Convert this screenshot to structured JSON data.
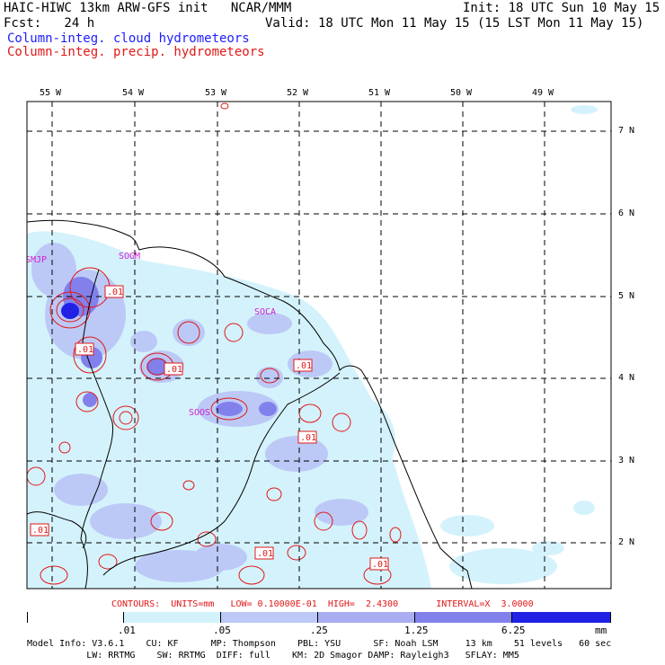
{
  "header": {
    "line1_left": "HAIC-HIWC 13km ARW-GFS init   NCAR/MMM",
    "line1_right": "Init: 18 UTC Sun 10 May 15",
    "line2_left": "Fcst:   24 h",
    "line2_right": "Valid: 18 UTC Mon 11 May 15 (15 LST Mon 11 May 15)",
    "field1": "Column-integ. cloud hydrometeors",
    "field2": "Column-integ. precip. hydrometeors",
    "field1_color": "#1c1cff",
    "field2_color": "#e01818"
  },
  "map": {
    "lon_labels": [
      "55 W",
      "54 W",
      "53 W",
      "52 W",
      "51 W",
      "50 W",
      "49 W"
    ],
    "lat_labels": [
      "7 N",
      "6 N",
      "5 N",
      "4 N",
      "3 N",
      "2 N"
    ],
    "stations": [
      "SMJP",
      "SOGM",
      "SOCA",
      "SOOS"
    ],
    "contour_labels": [
      ".01",
      ".01",
      ".01",
      ".01",
      ".01",
      ".01",
      ".01",
      ".01"
    ],
    "shade_colors": [
      "#ffffff",
      "#d4f2fb",
      "#bcc9f6",
      "#a9aef2",
      "#8281ec",
      "#5b57ea",
      "#2121e6"
    ],
    "contour_color": "#e01818",
    "station_color": "#d020d0"
  },
  "contour_info": {
    "line": "CONTOURS:  UNITS=mm   LOW= 0.10000E-01  HIGH=  2.4300       INTERVAL=X  3.0000"
  },
  "colorbar": {
    "ticks": [
      ".01",
      ".05",
      ".25",
      "1.25",
      "6.25"
    ],
    "units": "mm"
  },
  "model_info": {
    "line1": "Model Info: V3.6.1    CU: KF      MP: Thompson    PBL: YSU      SF: Noah LSM     13 km    51 levels   60 sec",
    "line2": "           LW: RRTMG    SW: RRTMG  DIFF: full    KM: 2D Smagor DAMP: Rayleigh3   SFLAY: MM5"
  }
}
